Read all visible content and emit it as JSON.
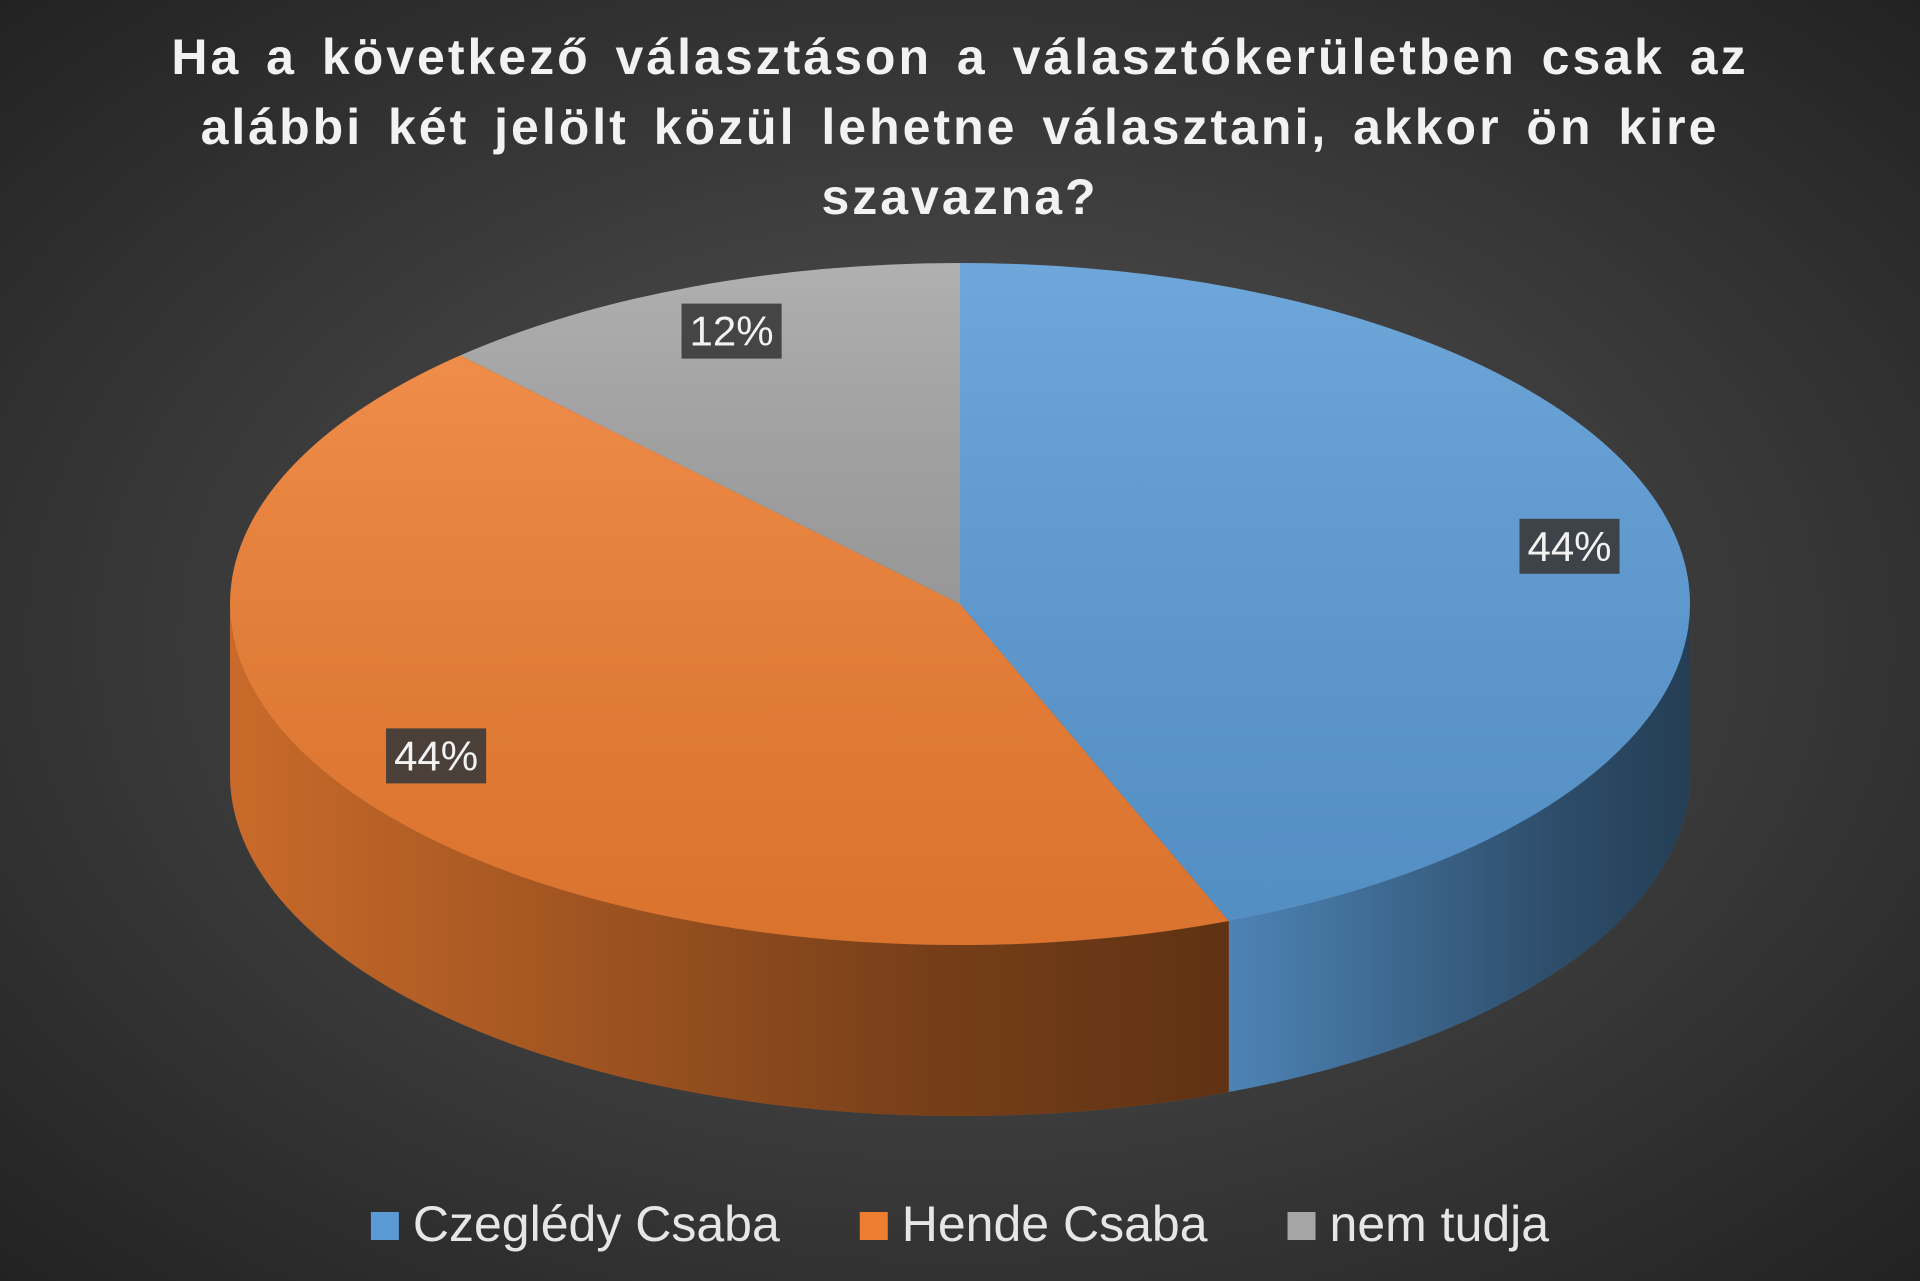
{
  "chart_data": {
    "type": "pie",
    "title": "Ha a következő választáson a választókerületben csak az alábbi két jelölt közül lehetne választani, akkor ön kire szavazna?",
    "categories": [
      "Czeglédy Csaba",
      "Hende Csaba",
      "nem tudja"
    ],
    "values": [
      44,
      44,
      12
    ],
    "value_labels": [
      "44%",
      "44%",
      "12%"
    ],
    "colors": [
      "#5b9bd5",
      "#ed7d31",
      "#a5a5a5"
    ],
    "legend": "bottom"
  }
}
